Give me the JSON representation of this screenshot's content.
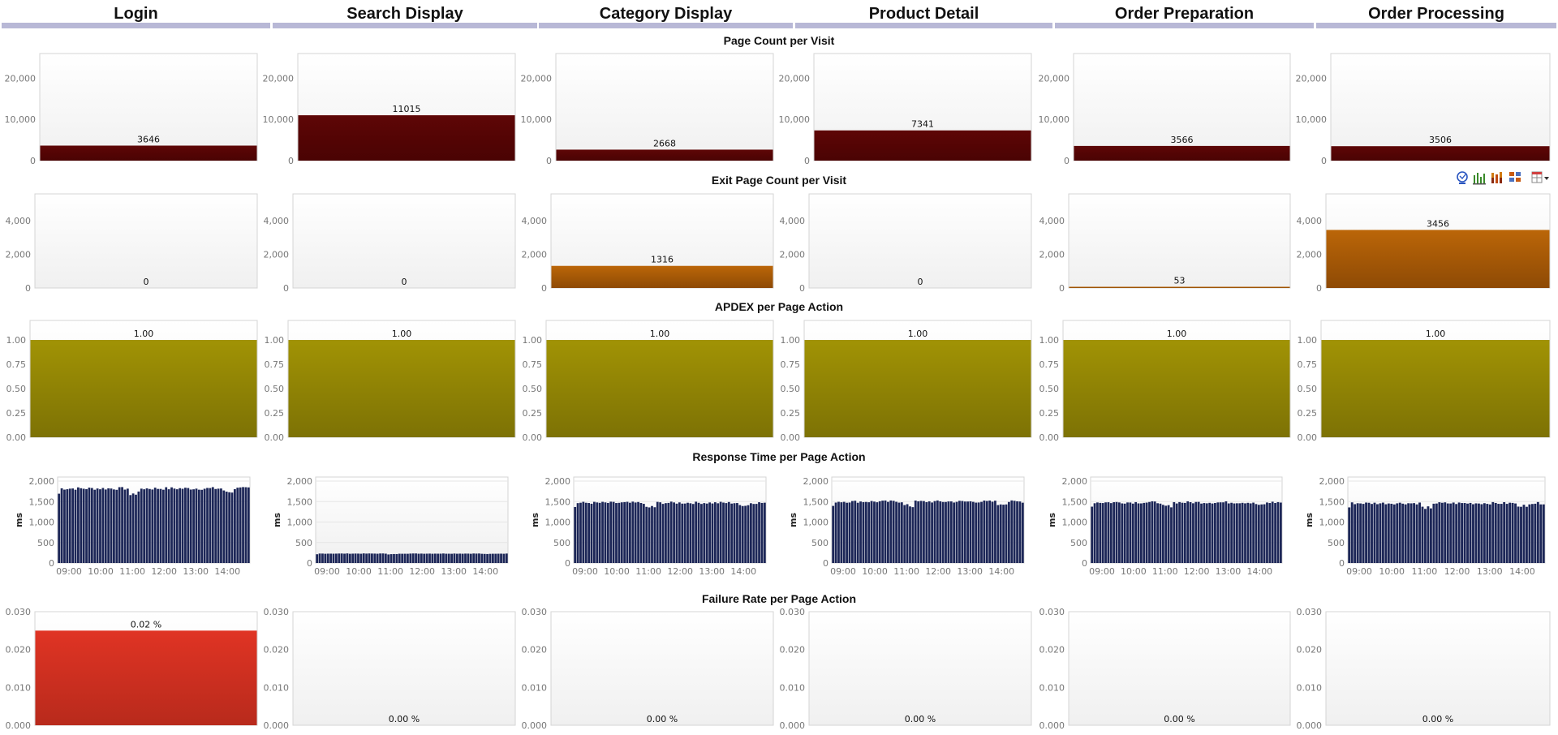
{
  "columns": [
    "Login",
    "Search Display",
    "Category Display",
    "Product Detail",
    "Order Preparation",
    "Order Processing"
  ],
  "colors": {
    "header_bar": "#b8b8d6",
    "page_count": "#5a0505",
    "exit_page": "#b56208",
    "apdex": "#9c8d05",
    "response": "#1c2657",
    "failure": "#d8301f"
  },
  "toolbar": {
    "icons": [
      "inspect-icon",
      "bar-chart-icon",
      "stacked-bars-icon",
      "grid-icon",
      "table-menu-icon"
    ]
  },
  "chart_data": [
    {
      "type": "bar",
      "title": "Page Count per Visit",
      "categories": [
        "Login",
        "Search Display",
        "Category Display",
        "Product Detail",
        "Order Preparation",
        "Order Processing"
      ],
      "values": [
        3646,
        11015,
        2668,
        7341,
        3566,
        3506
      ],
      "labels": [
        "3646",
        "11015",
        "2668",
        "7341",
        "3566",
        "3506"
      ],
      "ylim": [
        0,
        26000
      ],
      "yticks": [
        0,
        10000,
        20000
      ],
      "ytick_labels": [
        "0",
        "10,000",
        "20,000"
      ]
    },
    {
      "type": "bar",
      "title": "Exit Page Count per Visit",
      "categories": [
        "Login",
        "Search Display",
        "Category Display",
        "Product Detail",
        "Order Preparation",
        "Order Processing"
      ],
      "values": [
        0,
        0,
        1316,
        0,
        53,
        3456
      ],
      "labels": [
        "0",
        "0",
        "1316",
        "0",
        "53",
        "3456"
      ],
      "ylim": [
        0,
        5600
      ],
      "yticks": [
        0,
        2000,
        4000
      ],
      "ytick_labels": [
        "0",
        "2,000",
        "4,000"
      ]
    },
    {
      "type": "bar",
      "title": "APDEX per Page Action",
      "categories": [
        "Login",
        "Search Display",
        "Category Display",
        "Product Detail",
        "Order Preparation",
        "Order Processing"
      ],
      "values": [
        1.0,
        1.0,
        1.0,
        1.0,
        1.0,
        1.0
      ],
      "labels": [
        "1.00",
        "1.00",
        "1.00",
        "1.00",
        "1.00",
        "1.00"
      ],
      "ylim": [
        0,
        1.2
      ],
      "yticks": [
        0,
        0.25,
        0.5,
        0.75,
        1.0
      ],
      "ytick_labels": [
        "0.00",
        "0.25",
        "0.50",
        "0.75",
        "1.00"
      ]
    },
    {
      "type": "bar",
      "title": "Response Time per Page Action",
      "ylabel": "ms",
      "x_ticks": [
        "09:00",
        "10:00",
        "11:00",
        "12:00",
        "13:00",
        "14:00"
      ],
      "ylim": [
        0,
        2100
      ],
      "yticks": [
        0,
        500,
        1000,
        1500,
        2000
      ],
      "ytick_labels": [
        "0",
        "500",
        "1,000",
        "1,500",
        "2,000"
      ],
      "series": [
        {
          "name": "Login",
          "base": 1820,
          "dips": [],
          "values": []
        },
        {
          "name": "Search Display",
          "base": 230,
          "dips": [],
          "values": []
        },
        {
          "name": "Category Display",
          "base": 1470,
          "dips": [],
          "values": []
        },
        {
          "name": "Product Detail",
          "base": 1500,
          "dips": [],
          "values": []
        },
        {
          "name": "Order Preparation",
          "base": 1480,
          "dips": [],
          "values": []
        },
        {
          "name": "Order Processing",
          "base": 1460,
          "dips": [],
          "values": []
        }
      ]
    },
    {
      "type": "bar",
      "title": "Failure Rate per Page Action",
      "categories": [
        "Login",
        "Search Display",
        "Category Display",
        "Product Detail",
        "Order Preparation",
        "Order Processing"
      ],
      "values": [
        0.025,
        0,
        0,
        0,
        0,
        0
      ],
      "labels": [
        "0.02 %",
        "0.00 %",
        "0.00 %",
        "0.00 %",
        "0.00 %",
        "0.00 %"
      ],
      "ylim": [
        0,
        0.03
      ],
      "yticks": [
        0,
        0.01,
        0.02,
        0.03
      ],
      "ytick_labels": [
        "0.000",
        "0.010",
        "0.020",
        "0.030"
      ]
    }
  ]
}
